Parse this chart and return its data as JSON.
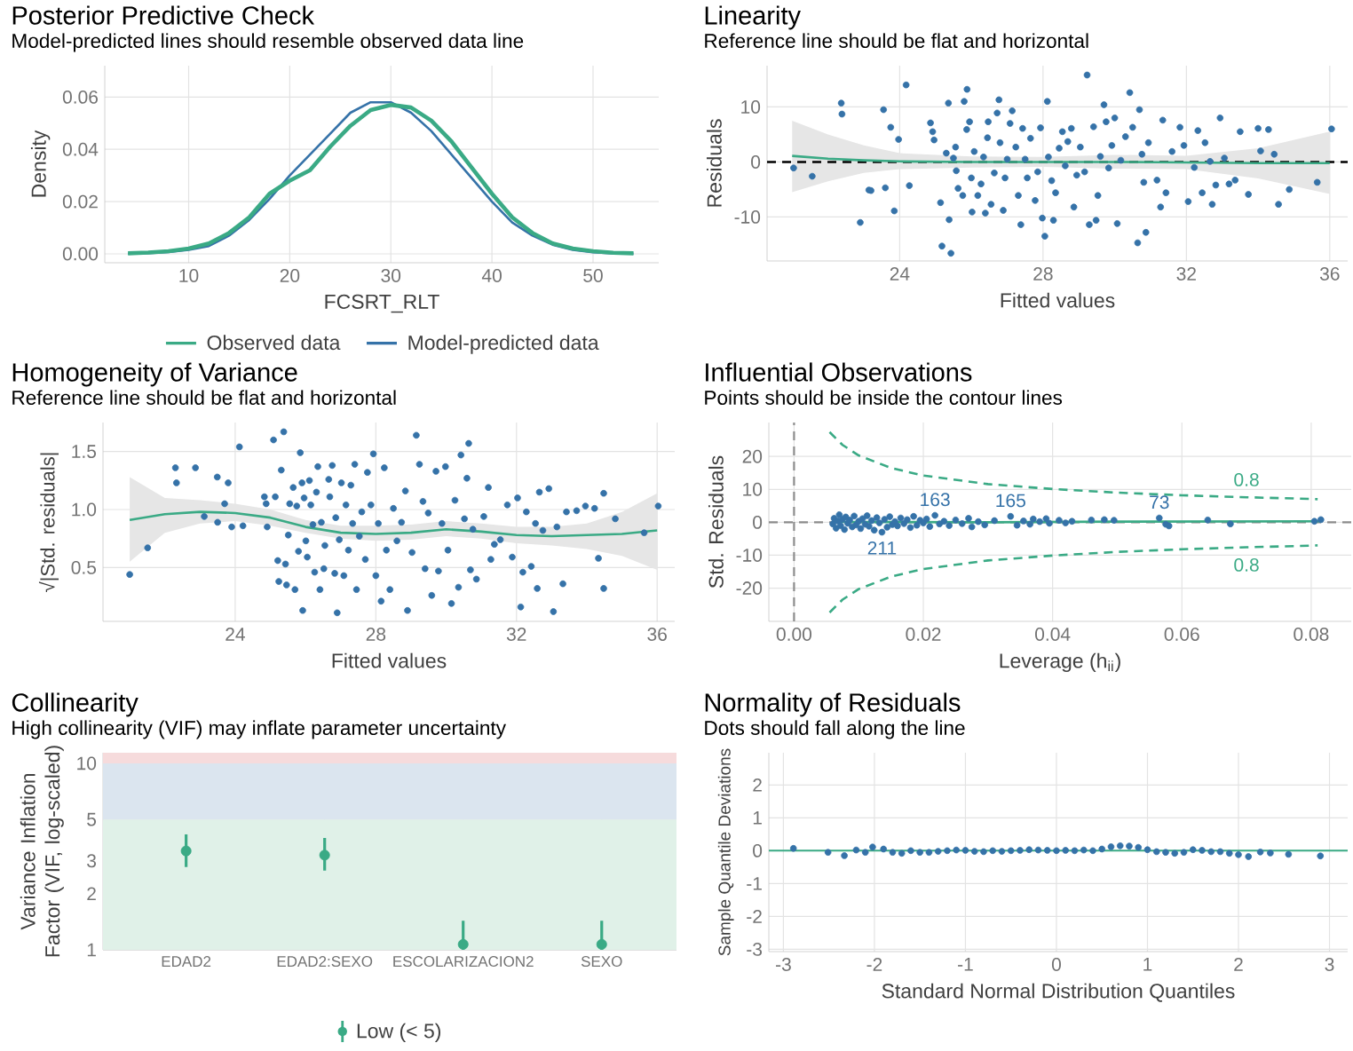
{
  "chart_data": [
    {
      "type": "line",
      "title": "Posterior Predictive Check",
      "subtitle": "Model-predicted lines should resemble observed data line",
      "xlabel": "FCSRT_RLT",
      "ylabel": "Density",
      "xlim": [
        1.7,
        56.5
      ],
      "xticks": [
        10,
        20,
        30,
        40,
        50
      ],
      "ylim": [
        -0.0034,
        0.072
      ],
      "yticks": [
        {
          "value": 0,
          "label": "0.00"
        },
        {
          "value": 0.02,
          "label": "0.02"
        },
        {
          "value": 0.04,
          "label": "0.04"
        },
        {
          "value": 0.06,
          "label": "0.06"
        }
      ],
      "grid": true,
      "legend": "bottom",
      "series": [
        {
          "name": "Observed data",
          "color": "#3aaa85",
          "x": [
            4,
            6,
            8,
            10,
            12,
            14,
            16,
            18,
            20,
            22,
            24,
            26,
            28,
            30,
            32,
            34,
            36,
            38,
            40,
            42,
            44,
            46,
            48,
            50,
            52,
            54
          ],
          "values": [
            0.0002,
            0.0005,
            0.001,
            0.002,
            0.004,
            0.008,
            0.014,
            0.023,
            0.028,
            0.032,
            0.041,
            0.049,
            0.055,
            0.057,
            0.056,
            0.051,
            0.043,
            0.033,
            0.023,
            0.014,
            0.008,
            0.004,
            0.002,
            0.001,
            0.0004,
            0.0002
          ]
        },
        {
          "name": "Model-predicted data",
          "color": "#3572a8",
          "x": [
            4,
            6,
            8,
            10,
            12,
            14,
            16,
            18,
            20,
            22,
            24,
            26,
            28,
            30,
            32,
            34,
            36,
            38,
            40,
            42,
            44,
            46,
            48,
            50,
            52,
            54
          ],
          "values": [
            0.0001,
            0.0003,
            0.0007,
            0.0015,
            0.003,
            0.007,
            0.013,
            0.021,
            0.03,
            0.038,
            0.046,
            0.054,
            0.058,
            0.058,
            0.054,
            0.047,
            0.038,
            0.029,
            0.02,
            0.012,
            0.007,
            0.0035,
            0.0015,
            0.0006,
            0.0002,
            0.0001
          ]
        }
      ]
    },
    {
      "type": "scatter",
      "title": "Linearity",
      "subtitle": "Reference line should be flat and horizontal",
      "xlabel": "Fitted values",
      "ylabel": "Residuals",
      "xlim": [
        20.3,
        36.5
      ],
      "xticks": [
        24,
        28,
        32,
        36
      ],
      "ylim": [
        -18,
        17.5
      ],
      "yticks": [
        -10,
        0,
        10
      ],
      "grid": true,
      "marker": "circle",
      "ref_lines": [
        {
          "axis": "y",
          "value": 0,
          "color": "#000000",
          "line_style": "dashed"
        }
      ],
      "series": [
        {
          "color": "#3572a8",
          "x": [
            21.04,
            21.56,
            22.37,
            22.39,
            22.9,
            23.14,
            23.2,
            23.55,
            23.6,
            23.75,
            23.85,
            23.97,
            24.18,
            24.27,
            24.86,
            24.92,
            24.96,
            25.14,
            25.18,
            25.3,
            25.36,
            25.38,
            25.43,
            25.5,
            25.58,
            25.56,
            25.63,
            25.76,
            25.8,
            25.88,
            25.87,
            25.95,
            26,
            26.02,
            26.08,
            26.18,
            26.27,
            26.34,
            26.39,
            26.45,
            26.47,
            26.55,
            26.64,
            26.72,
            26.77,
            26.8,
            26.89,
            26.94,
            27,
            27.08,
            27.14,
            27.24,
            27.31,
            27.38,
            27.43,
            27.5,
            27.56,
            27.65,
            27.78,
            27.85,
            27.93,
            27.98,
            28.05,
            28.12,
            28.15,
            28.24,
            28.29,
            28.35,
            28.45,
            28.54,
            28.62,
            28.69,
            28.79,
            28.86,
            28.94,
            29.04,
            29.16,
            29.23,
            29.29,
            29.41,
            29.48,
            29.53,
            29.6,
            29.7,
            29.76,
            29.83,
            29.92,
            30,
            30.07,
            30.17,
            30.3,
            30.42,
            30.5,
            30.64,
            30.69,
            30.76,
            30.81,
            30.87,
            30.94,
            31.18,
            31.28,
            31.34,
            31.43,
            31.6,
            31.82,
            31.93,
            32.05,
            32.22,
            32.32,
            32.44,
            32.52,
            32.66,
            32.72,
            32.82,
            32.94,
            33.06,
            33.19,
            33.36,
            33.5,
            33.73,
            34,
            34.07,
            34.29,
            34.45,
            34.57,
            34.87,
            35.65,
            36.05
          ],
          "values": [
            -1.1,
            -2.6,
            10.7,
            8.7,
            -11,
            -5.1,
            -5.2,
            9.5,
            -4.7,
            6.3,
            -8.9,
            4.1,
            14,
            -4.3,
            7.1,
            5.5,
            4,
            -7.4,
            -15.3,
            1.6,
            10.7,
            -10.5,
            -16.6,
            0.7,
            -1.6,
            2.7,
            -4.8,
            -6.1,
            11,
            13.2,
            5.9,
            7.3,
            -2.9,
            -9.1,
            1.9,
            -6.1,
            -4,
            0.9,
            -9.3,
            4.4,
            7.3,
            -7.7,
            -2,
            8.9,
            11.3,
            3.5,
            -8.8,
            -2.9,
            0.5,
            7,
            9.3,
            2.7,
            -6.1,
            -11.4,
            6.1,
            0.5,
            -2.9,
            4.3,
            -7,
            -1.8,
            6.2,
            -10.2,
            -13.5,
            11,
            0.9,
            -3.4,
            -10.6,
            -5.6,
            2.5,
            5.5,
            -0.7,
            3.7,
            6.1,
            -8.2,
            -2.4,
            2.7,
            -1.8,
            15.8,
            -11.4,
            6.4,
            -10.6,
            -6.1,
            1,
            10.4,
            7.3,
            -1.1,
            3,
            8,
            -11.2,
            0.3,
            4.6,
            12.6,
            6.3,
            -14.7,
            9.5,
            1.4,
            -3.7,
            -12.8,
            3.5,
            -3.3,
            -8.2,
            7.6,
            -5.6,
            1.9,
            6.3,
            3,
            -7.2,
            -1,
            5.7,
            -5.6,
            3.5,
            0.1,
            -7.7,
            -4.2,
            8,
            0.7,
            -4,
            -3.3,
            5.5,
            -5.9,
            6.1,
            2,
            5.9,
            1.4,
            -7.7,
            -5,
            -3.7,
            6
          ]
        },
        {
          "type": "line",
          "color": "#3aaa85",
          "x": [
            21,
            22,
            23,
            24,
            26,
            28,
            30,
            32,
            34,
            36
          ],
          "values": [
            1.1,
            0.6,
            0.3,
            0.1,
            0,
            0,
            0,
            -0.1,
            -0.2,
            -0.2
          ],
          "lower": [
            -5.5,
            -3.5,
            -2,
            -1.3,
            -1,
            -0.9,
            -1.2,
            -1.3,
            -3,
            -5.8
          ],
          "upper": [
            7.5,
            5,
            3,
            1.6,
            1,
            0.9,
            1.3,
            1.1,
            2.5,
            5.5
          ],
          "marker": "none"
        }
      ]
    },
    {
      "type": "scatter",
      "title": "Homogeneity of Variance",
      "subtitle": "Reference line should be flat and horizontal",
      "xlabel": "Fitted values",
      "ylabel": "√|Std. residuals|",
      "xlim": [
        20.24,
        36.5
      ],
      "xticks": [
        24,
        28,
        32,
        36
      ],
      "ylim": [
        0.036,
        1.75
      ],
      "yticks": [
        0.5,
        {
          "value": 1,
          "label": "1.0"
        },
        1.5
      ],
      "grid": true,
      "marker": "circle",
      "series": [
        {
          "color": "#3572a8",
          "x": [
            21,
            21.51,
            22.3,
            22.33,
            22.87,
            23.12,
            23.49,
            23.5,
            23.7,
            23.8,
            23.9,
            24.12,
            24.22,
            24.83,
            24.88,
            24.91,
            25.09,
            25.14,
            25.21,
            25.24,
            25.31,
            25.38,
            25.43,
            25.46,
            25.51,
            25.55,
            25.65,
            25.7,
            25.75,
            25.8,
            25.85,
            25.9,
            25.92,
            25.96,
            26.01,
            26.05,
            26.11,
            26.15,
            26.21,
            26.26,
            26.31,
            26.35,
            26.41,
            26.45,
            26.52,
            26.55,
            26.66,
            26.69,
            26.76,
            26.83,
            26.86,
            26.9,
            26.96,
            27.02,
            27.09,
            27.15,
            27.22,
            27.29,
            27.34,
            27.4,
            27.45,
            27.53,
            27.6,
            27.7,
            27.76,
            27.86,
            27.93,
            28,
            28.07,
            28.15,
            28.24,
            28.3,
            28.4,
            28.5,
            28.6,
            28.73,
            28.84,
            28.9,
            29.03,
            29.15,
            29.24,
            29.34,
            29.4,
            29.49,
            29.59,
            29.71,
            29.78,
            29.88,
            29.98,
            30.05,
            30.15,
            30.25,
            30.35,
            30.42,
            30.52,
            30.59,
            30.64,
            30.69,
            30.76,
            30.86,
            31.07,
            31.2,
            31.27,
            31.37,
            31.54,
            31.74,
            31.88,
            32.03,
            32.12,
            32.18,
            32.28,
            32.42,
            32.54,
            32.59,
            32.65,
            32.75,
            32.92,
            33.05,
            33.15,
            33.32,
            33.42,
            33.71,
            33.96,
            34.22,
            34.33,
            34.48,
            34.48,
            34.81,
            35.63,
            36.03
          ],
          "values": [
            0.44,
            0.67,
            1.36,
            1.23,
            1.36,
            0.94,
            1.28,
            0.89,
            1.05,
            1.23,
            0.85,
            1.54,
            0.86,
            1.11,
            1.05,
            0.85,
            1.6,
            1.11,
            0.56,
            0.38,
            1.34,
            1.67,
            0.53,
            0.35,
            0.78,
            1.05,
            1.19,
            0.31,
            1.03,
            0.64,
            1.49,
            1.23,
            0.13,
            1.1,
            0.73,
            0.59,
            1.25,
            1.04,
            0.87,
            0.46,
            1.15,
            1.37,
            0.31,
            0.89,
            0.49,
            0.69,
            1.26,
            1.11,
            1.38,
            0.45,
            0.93,
            0.11,
            0.74,
            1.23,
            0.43,
            1.04,
            0.65,
            1.21,
            0.88,
            1.39,
            0.31,
            0.77,
            0.98,
            0.57,
            1.32,
            1.04,
            1.48,
            0.43,
            0.88,
            0.21,
            1.36,
            0.65,
            0.31,
            1.01,
            0.73,
            0.89,
            1.16,
            0.13,
            0.63,
            1.64,
            1.39,
            1.07,
            0.49,
            0.97,
            0.26,
            1.33,
            0.47,
            0.88,
            1.37,
            0.65,
            0.19,
            1.08,
            0.33,
            1.47,
            0.92,
            1.27,
            1.57,
            0.48,
            0.83,
            0.4,
            0.94,
            1.19,
            0.57,
            0.7,
            0.74,
            1.04,
            0.59,
            1.1,
            0.16,
            0.46,
            0.98,
            0.51,
            0.88,
            0.32,
            1.15,
            0.82,
            1.18,
            0.12,
            0.85,
            0.36,
            0.98,
            0.99,
            1.03,
            1.01,
            0.58,
            1.14,
            0.32,
            0.92,
            0.8,
            1.03
          ]
        },
        {
          "type": "line",
          "color": "#3aaa85",
          "x": [
            21,
            22,
            23,
            24,
            25,
            26,
            27,
            28,
            29,
            30,
            31,
            32,
            33,
            34,
            35,
            36
          ],
          "values": [
            0.91,
            0.96,
            0.98,
            0.97,
            0.93,
            0.85,
            0.8,
            0.79,
            0.8,
            0.83,
            0.81,
            0.78,
            0.77,
            0.78,
            0.79,
            0.82
          ],
          "lower": [
            0.55,
            0.8,
            0.88,
            0.9,
            0.86,
            0.8,
            0.75,
            0.73,
            0.74,
            0.77,
            0.75,
            0.71,
            0.69,
            0.66,
            0.6,
            0.48
          ],
          "upper": [
            1.28,
            1.1,
            1.08,
            1.05,
            1,
            0.91,
            0.86,
            0.86,
            0.87,
            0.9,
            0.88,
            0.85,
            0.85,
            0.88,
            0.98,
            1.14
          ],
          "marker": "none"
        }
      ]
    },
    {
      "type": "scatter",
      "title": "Influential Observations",
      "subtitle": "Points should be inside the contour lines",
      "xlabel": "Leverage (h$_{ii}$)",
      "ylabel": "Std. Residuals",
      "xlim": [
        -0.0039,
        0.0862
      ],
      "xticks": [
        {
          "value": 0,
          "label": "0.00"
        },
        {
          "value": 0.02,
          "label": "0.02"
        },
        {
          "value": 0.04,
          "label": "0.04"
        },
        {
          "value": 0.06,
          "label": "0.06"
        },
        {
          "value": 0.08,
          "label": "0.08"
        }
      ],
      "ylim": [
        -30.1,
        30.3
      ],
      "yticks": [
        -20,
        -10,
        0,
        10,
        20
      ],
      "grid": true,
      "marker": "circle",
      "ref_lines": [
        {
          "axis": "x",
          "value": 0,
          "color": "#8c8c8c",
          "line_style": "dashed"
        },
        {
          "axis": "y",
          "value": 0,
          "color": "#8c8c8c",
          "line_style": "dashed"
        }
      ],
      "annotations": [
        {
          "text": "163",
          "x": 0.0218,
          "y": 2.1
        },
        {
          "text": "165",
          "x": 0.0335,
          "y": 1.8
        },
        {
          "text": "211",
          "x": 0.0136,
          "y": -3
        },
        {
          "text": "73",
          "x": 0.0565,
          "y": 1.3
        }
      ],
      "series": [
        {
          "color": "#3572a8",
          "x": [
            0.006,
            0.0062,
            0.0065,
            0.0068,
            0.007,
            0.0072,
            0.0075,
            0.0078,
            0.008,
            0.0083,
            0.0086,
            0.009,
            0.0093,
            0.0096,
            0.01,
            0.0103,
            0.0106,
            0.011,
            0.0113,
            0.0116,
            0.012,
            0.0124,
            0.0128,
            0.0132,
            0.0136,
            0.014,
            0.0144,
            0.0148,
            0.0152,
            0.0156,
            0.016,
            0.0165,
            0.017,
            0.0175,
            0.018,
            0.0185,
            0.019,
            0.0195,
            0.02,
            0.0205,
            0.021,
            0.0218,
            0.0225,
            0.0232,
            0.024,
            0.025,
            0.026,
            0.027,
            0.0275,
            0.0285,
            0.0295,
            0.031,
            0.0335,
            0.0345,
            0.0355,
            0.0365,
            0.037,
            0.038,
            0.039,
            0.0395,
            0.041,
            0.042,
            0.043,
            0.046,
            0.048,
            0.0495,
            0.0565,
            0.0575,
            0.058,
            0.064,
            0.0675,
            0.0805,
            0.0815
          ],
          "values": [
            -0.5,
            1.2,
            -1.8,
            0.4,
            2.3,
            -1,
            0.9,
            -2.2,
            1.6,
            -0.3,
            0.7,
            -1.4,
            1.9,
            -0.8,
            0.3,
            -1.9,
            1.1,
            -0.6,
            2,
            -1.2,
            0.5,
            -2.4,
            1.4,
            -0.2,
            -3,
            0.9,
            -1.5,
            1.7,
            -0.7,
            0.2,
            -1.1,
            1.3,
            -0.4,
            0.8,
            -1.6,
            1.8,
            -0.9,
            0.6,
            -0.2,
            1,
            -1.3,
            2.1,
            -0.5,
            0.3,
            -1,
            0.7,
            -0.4,
            1.2,
            -1.4,
            0.2,
            -0.8,
            0.5,
            1.8,
            -0.9,
            0.4,
            -0.6,
            1,
            0.2,
            1.1,
            -0.3,
            0.6,
            -0.2,
            0.3,
            0.7,
            0.8,
            0.6,
            1.3,
            -0.6,
            -1.1,
            0.7,
            -0.5,
            0.3,
            0.8
          ]
        },
        {
          "type": "line",
          "color": "#3aaa85",
          "x": [
            0.006,
            0.03,
            0.05,
            0.0815
          ],
          "values": [
            0.1,
            0,
            0.2,
            0.3
          ],
          "marker": "none"
        },
        {
          "type": "line",
          "name": "0.8",
          "color": "#3aaa85",
          "line_style": "dashed",
          "marker": "none",
          "x": [
            0.0055,
            0.0075,
            0.01,
            0.015,
            0.02,
            0.03,
            0.04,
            0.05,
            0.06,
            0.07,
            0.08,
            0.081
          ],
          "values": [
            27.4,
            23.5,
            20.3,
            16.5,
            14.2,
            11.6,
            10.1,
            9,
            8.2,
            7.6,
            7.1,
            7
          ]
        },
        {
          "type": "line",
          "name": "0.8",
          "color": "#3aaa85",
          "line_style": "dashed",
          "marker": "none",
          "x": [
            0.0055,
            0.0075,
            0.01,
            0.015,
            0.02,
            0.03,
            0.04,
            0.05,
            0.06,
            0.07,
            0.08,
            0.081
          ],
          "values": [
            -27.4,
            -23.5,
            -20.3,
            -16.5,
            -14.2,
            -11.6,
            -10.1,
            -9,
            -8.2,
            -7.6,
            -7.1,
            -7
          ]
        }
      ]
    },
    {
      "type": "scatter",
      "title": "Collinearity",
      "subtitle": "High collinearity (VIF) may inflate parameter uncertainty",
      "ylabel": "Variance Inflation Factor (VIF, log-scaled)",
      "categories": [
        "EDAD2",
        "EDAD2:SEXO",
        "ESCOLARIZACION2",
        "SEXO"
      ],
      "log": "y",
      "ylim": [
        1,
        11.4
      ],
      "yticks": [
        1,
        2,
        3,
        5,
        10
      ],
      "grid": true,
      "marker": "circle",
      "legend": "bottom",
      "bands": [
        {
          "axis": "y",
          "from": 1,
          "to": 5,
          "color": "#e0f1e8"
        },
        {
          "axis": "y",
          "from": 5,
          "to": 10,
          "color": "#dbe5ef"
        },
        {
          "axis": "y",
          "from": 10,
          "to": 11.4,
          "color": "#f6dbdc"
        }
      ],
      "series": [
        {
          "name": "Low (< 5)",
          "color": "#3aaa85",
          "values": [
            3.39,
            3.22,
            1.07,
            1.07
          ],
          "errors": [
            [
              2.78,
              4.16
            ],
            [
              2.66,
              3.98
            ],
            [
              1,
              1.43
            ],
            [
              1,
              1.43
            ]
          ]
        }
      ]
    },
    {
      "type": "scatter",
      "title": "Normality of Residuals",
      "subtitle": "Dots should fall along the line",
      "xlabel": "Standard Normal Distribution Quantiles",
      "ylabel": "Sample Quantile Deviations",
      "xlim": [
        -3.16,
        3.2
      ],
      "xticks": [
        -3,
        -2,
        -1,
        0,
        1,
        2,
        3
      ],
      "ylim": [
        -3.07,
        2.98
      ],
      "yticks": [
        -3,
        -2,
        -1,
        0,
        1,
        2
      ],
      "grid": true,
      "marker": "circle",
      "ref_lines": [
        {
          "axis": "y",
          "value": 0,
          "color": "#3aaa85"
        }
      ],
      "series": [
        {
          "color": "#3572a8",
          "x": [
            -2.89,
            -2.51,
            -2.33,
            -2.2,
            -2.1,
            -2.02,
            -1.9,
            -1.8,
            -1.7,
            -1.6,
            -1.5,
            -1.4,
            -1.3,
            -1.2,
            -1.1,
            -1,
            -0.9,
            -0.8,
            -0.7,
            -0.6,
            -0.5,
            -0.4,
            -0.3,
            -0.2,
            -0.1,
            0,
            0.1,
            0.2,
            0.3,
            0.4,
            0.5,
            0.6,
            0.7,
            0.8,
            0.9,
            1,
            1.1,
            1.2,
            1.3,
            1.4,
            1.5,
            1.6,
            1.7,
            1.8,
            1.9,
            2,
            2.11,
            2.24,
            2.35,
            2.55,
            2.9
          ],
          "values": [
            0.07,
            -0.05,
            -0.15,
            0.02,
            -0.05,
            0.11,
            0.05,
            -0.05,
            -0.08,
            0,
            -0.05,
            -0.05,
            -0.02,
            0,
            0.02,
            0.01,
            -0.02,
            -0.03,
            0,
            -0.02,
            0,
            0.01,
            0.03,
            0.02,
            0.01,
            0,
            0.01,
            0,
            0.02,
            0,
            0.05,
            0.12,
            0.15,
            0.14,
            0.1,
            0.03,
            -0.03,
            -0.05,
            -0.08,
            -0.05,
            0.03,
            0.01,
            -0.03,
            -0.03,
            -0.08,
            -0.12,
            -0.18,
            -0.04,
            -0.07,
            -0.11,
            -0.16
          ]
        }
      ]
    }
  ]
}
